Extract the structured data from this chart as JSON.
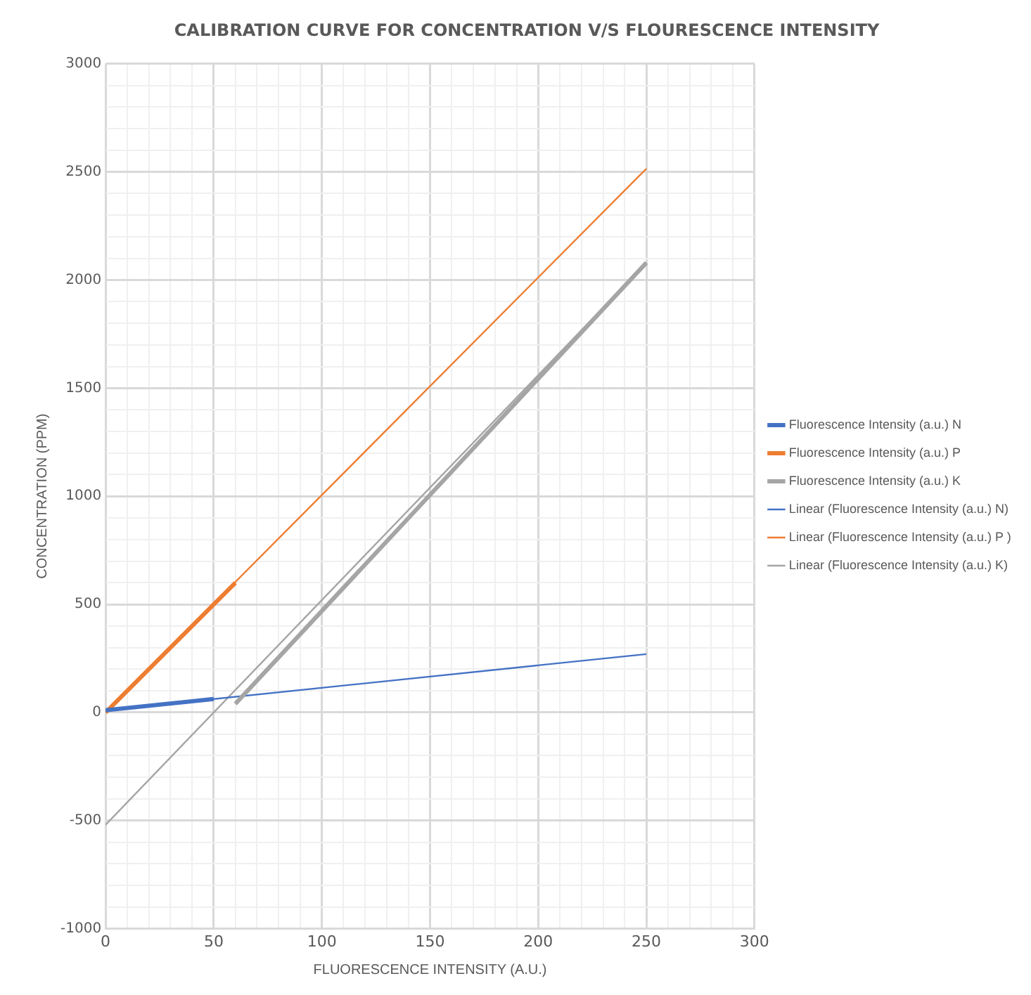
{
  "chart_data": {
    "type": "line",
    "title": "CALIBRATION CURVE FOR CONCENTRATION V/S FLOURESCENCE INTENSITY",
    "xlabel": "FLUORESCENCE INTENSITY (A.U.)",
    "ylabel": "CONCENTRATION (PPM)",
    "series": [
      {
        "name": "Fluorescence Intensity (a.u.) N",
        "color": "#4472c4",
        "x": [
          0,
          50
        ],
        "values": [
          10,
          62
        ]
      },
      {
        "name": "Fluorescence Intensity (a.u.) P",
        "color": "#ed7d31",
        "x": [
          0,
          60
        ],
        "values": [
          0,
          600
        ]
      },
      {
        "name": "Fluorescence Intensity (a.u.) K",
        "color": "#a5a5a5",
        "x": [
          60,
          250
        ],
        "values": [
          40,
          2080
        ]
      },
      {
        "name": "Linear (Fluorescence Intensity (a.u.) N)",
        "color": "#4472c4",
        "x": [
          0,
          250
        ],
        "values": [
          10,
          270
        ]
      },
      {
        "name": "Linear (Fluorescence Intensity (a.u.) P )",
        "color": "#ed7d31",
        "x": [
          0,
          250
        ],
        "values": [
          0,
          2515
        ]
      },
      {
        "name": "Linear (Fluorescence Intensity (a.u.) K)",
        "color": "#a5a5a5",
        "x": [
          0,
          250
        ],
        "values": [
          -520,
          2080
        ]
      }
    ],
    "xlim": [
      0,
      300
    ],
    "xticks": [
      0,
      {
        "value": 10,
        "label": null
      },
      {
        "value": 20,
        "label": null
      },
      {
        "value": 30,
        "label": null
      },
      {
        "value": 40,
        "label": null
      },
      50,
      {
        "value": 60,
        "label": null
      },
      {
        "value": 70,
        "label": null
      },
      {
        "value": 80,
        "label": null
      },
      {
        "value": 90,
        "label": null
      },
      100,
      {
        "value": 110,
        "label": null
      },
      {
        "value": 120,
        "label": null
      },
      {
        "value": 130,
        "label": null
      },
      {
        "value": 140,
        "label": null
      },
      150,
      {
        "value": 160,
        "label": null
      },
      {
        "value": 170,
        "label": null
      },
      {
        "value": 180,
        "label": null
      },
      {
        "value": 190,
        "label": null
      },
      200,
      {
        "value": 210,
        "label": null
      },
      {
        "value": 220,
        "label": null
      },
      {
        "value": 230,
        "label": null
      },
      {
        "value": 240,
        "label": null
      },
      250,
      {
        "value": 260,
        "label": null
      },
      {
        "value": 270,
        "label": null
      },
      {
        "value": 280,
        "label": null
      },
      {
        "value": 290,
        "label": null
      },
      300
    ],
    "ylim": [
      -1000,
      3000
    ],
    "yticks": [
      -1000,
      {
        "value": -900,
        "label": null
      },
      {
        "value": -800,
        "label": null
      },
      {
        "value": -700,
        "label": null
      },
      {
        "value": -600,
        "label": null
      },
      -500,
      {
        "value": -400,
        "label": null
      },
      {
        "value": -300,
        "label": null
      },
      {
        "value": -200,
        "label": null
      },
      {
        "value": -100,
        "label": null
      },
      0,
      {
        "value": 100,
        "label": null
      },
      {
        "value": 200,
        "label": null
      },
      {
        "value": 300,
        "label": null
      },
      {
        "value": 400,
        "label": null
      },
      500,
      {
        "value": 600,
        "label": null
      },
      {
        "value": 700,
        "label": null
      },
      {
        "value": 800,
        "label": null
      },
      {
        "value": 900,
        "label": null
      },
      1000,
      {
        "value": 1100,
        "label": null
      },
      {
        "value": 1200,
        "label": null
      },
      {
        "value": 1300,
        "label": null
      },
      {
        "value": 1400,
        "label": null
      },
      1500,
      {
        "value": 1600,
        "label": null
      },
      {
        "value": 1700,
        "label": null
      },
      {
        "value": 1800,
        "label": null
      },
      {
        "value": 1900,
        "label": null
      },
      2000,
      {
        "value": 2100,
        "label": null
      },
      {
        "value": 2200,
        "label": null
      },
      {
        "value": 2300,
        "label": null
      },
      {
        "value": 2400,
        "label": null
      },
      2500,
      {
        "value": 2600,
        "label": null
      },
      {
        "value": 2700,
        "label": null
      },
      {
        "value": 2800,
        "label": null
      },
      {
        "value": 2900,
        "label": null
      },
      3000
    ],
    "grid": true,
    "legend": "right",
    "marker": "none",
    "line_style": "solid"
  }
}
